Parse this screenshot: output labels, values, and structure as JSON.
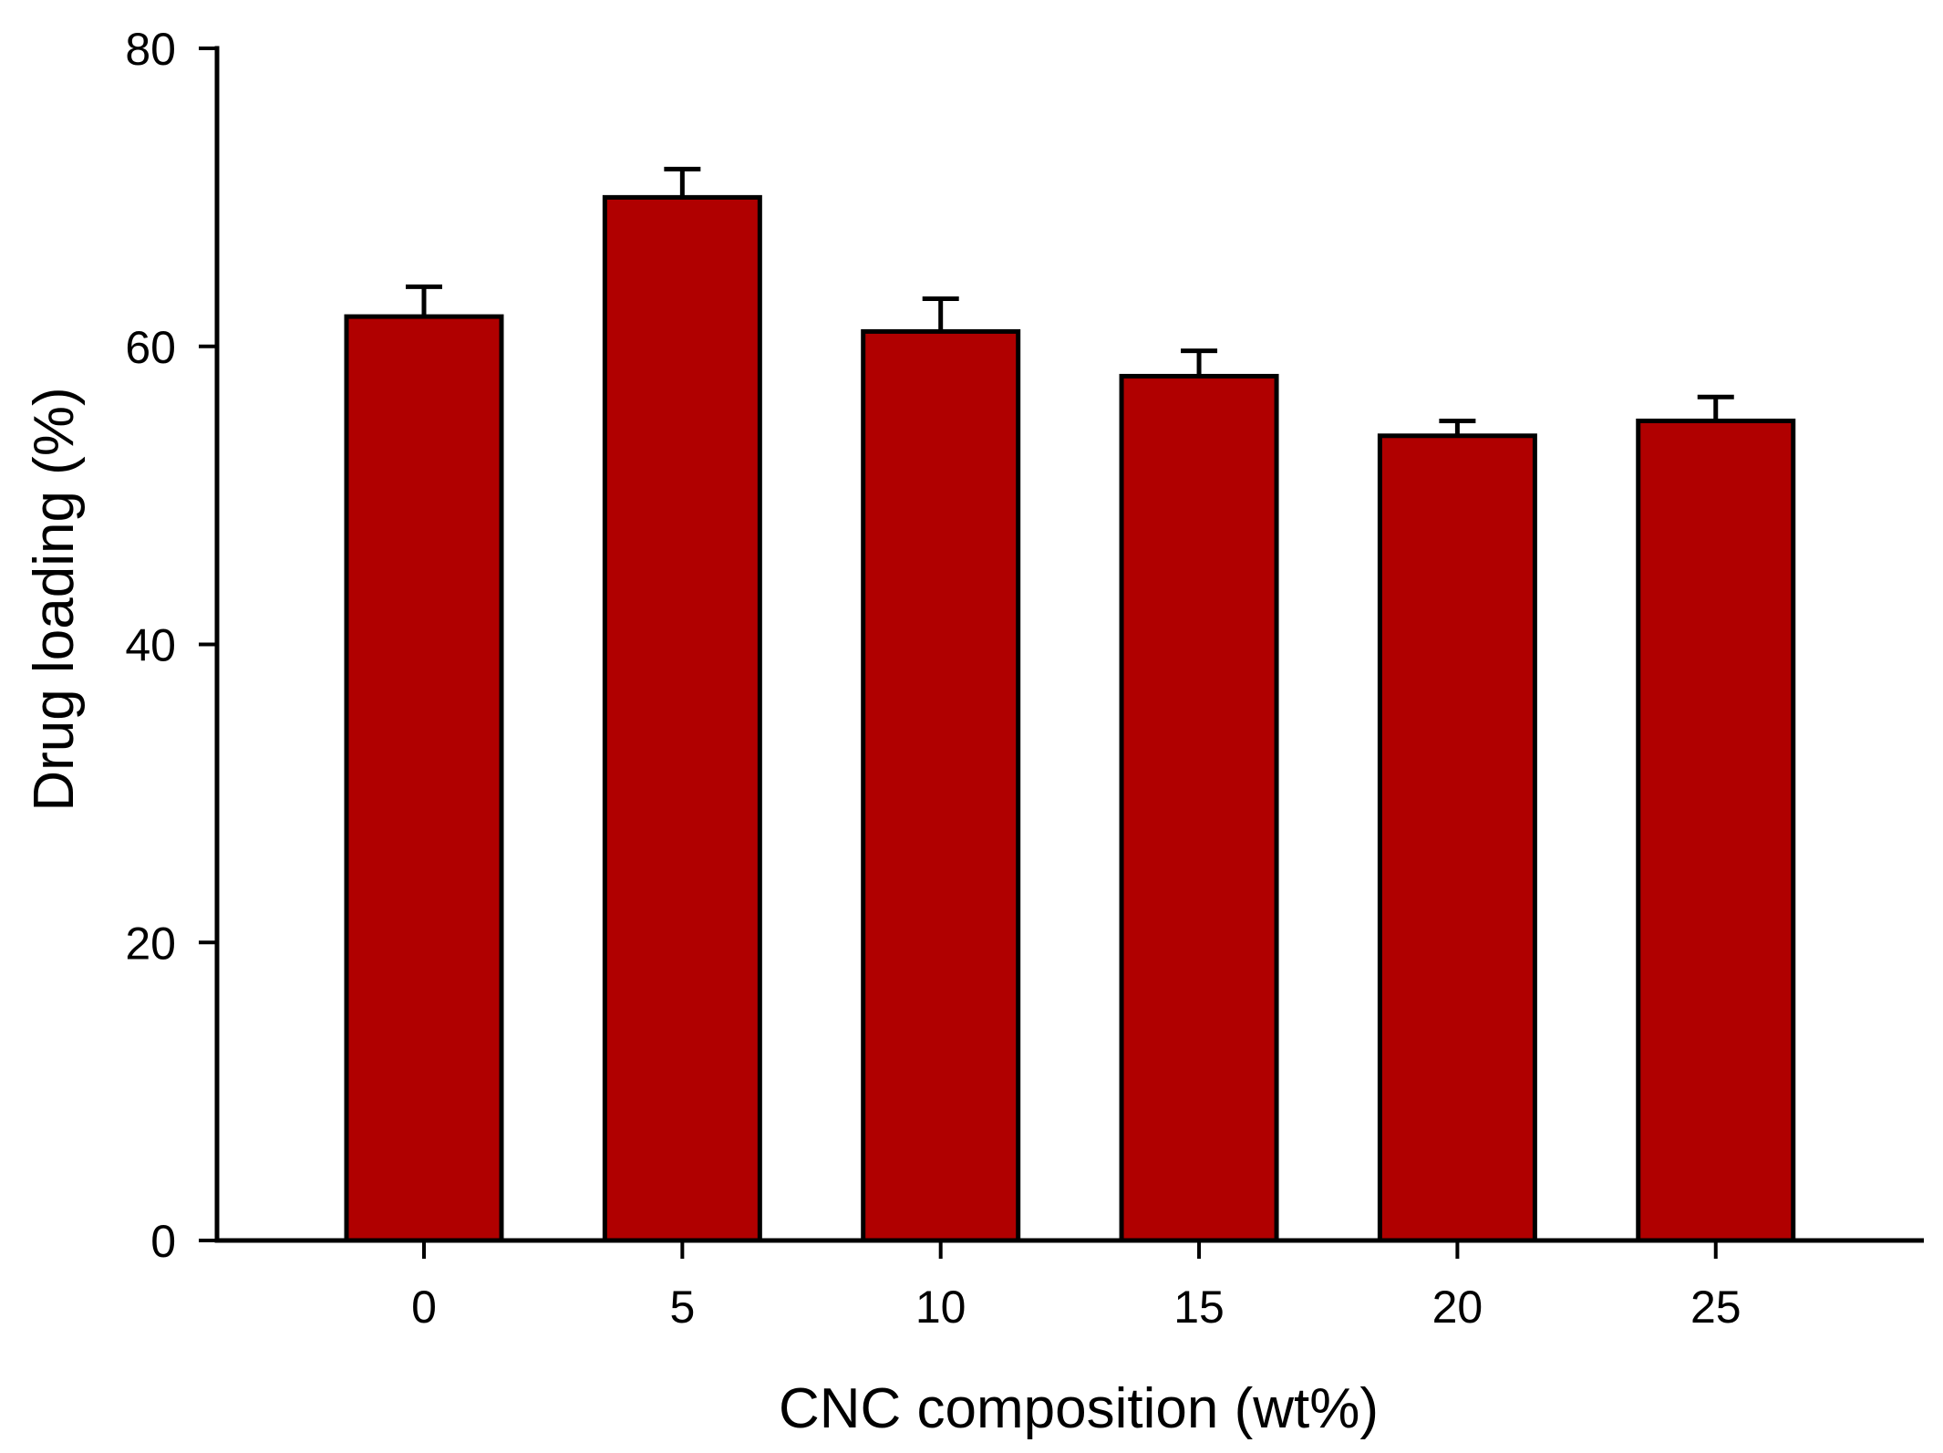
{
  "chart_data": {
    "type": "bar",
    "title": "",
    "xlabel": "CNC composition (wt%)",
    "ylabel": "Drug loading (%)",
    "categories": [
      "0",
      "5",
      "10",
      "15",
      "20",
      "25"
    ],
    "values": [
      62,
      70,
      61,
      58,
      54,
      55
    ],
    "errors": [
      2.0,
      1.9,
      2.2,
      1.7,
      1.0,
      1.6
    ],
    "error_bars": "upper",
    "ylim": [
      0,
      80
    ],
    "yticks": [
      0,
      20,
      40,
      60,
      80
    ],
    "ytick_labels": [
      "0",
      "20",
      "40",
      "60",
      "80"
    ],
    "grid": false,
    "legend": "none",
    "bar_color": "#B00000",
    "bar_border_color": "#000000",
    "axis_color": "#000000",
    "background_color": "#FFFFFF"
  }
}
